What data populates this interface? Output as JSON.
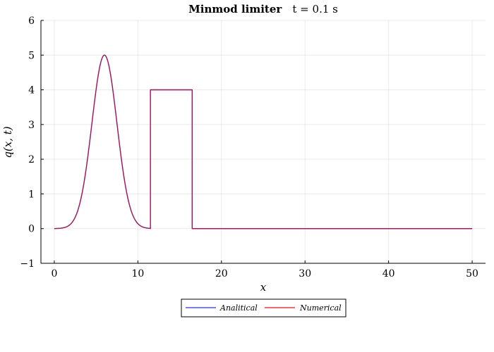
{
  "chart_data": {
    "type": "line",
    "title_bold": "Minmod limiter",
    "title_rest": "t = 0.1 s",
    "xlabel": "x",
    "ylabel": "q(x, t)",
    "xlim": [
      -1.6,
      51.6
    ],
    "ylim": [
      -1,
      6
    ],
    "xticks": [
      0,
      10,
      20,
      30,
      40,
      50
    ],
    "yticks": [
      -1,
      0,
      1,
      2,
      3,
      4,
      5,
      6
    ],
    "grid": true,
    "legend_position": "bottom-center, below plot",
    "gaussian": {
      "center": 6,
      "amplitude": 5,
      "sigma": 1.5,
      "x_range": [
        0,
        11.5
      ]
    },
    "square_pulse": {
      "x_start": 11.5,
      "x_end": 16.5,
      "height": 4
    },
    "baseline": {
      "x_range": [
        16.5,
        50
      ],
      "value": 0
    },
    "series": [
      {
        "name": "Analitical",
        "color": "#4f4fff"
      },
      {
        "name": "Numerical",
        "color": "#ff3333"
      }
    ],
    "overlap_color": "#b0104f"
  }
}
